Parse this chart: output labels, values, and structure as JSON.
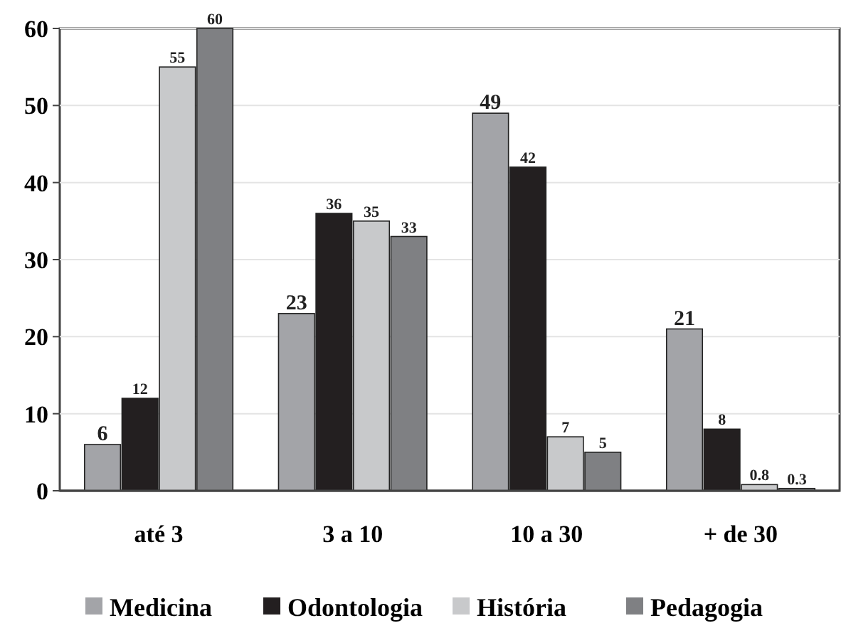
{
  "chart_data": {
    "type": "bar",
    "categories": [
      "até 3",
      "3 a 10",
      "10 a 30",
      "+ de 30"
    ],
    "series": [
      {
        "name": "Medicina",
        "color": "#a3a4a8",
        "values": [
          6,
          23,
          49,
          21
        ]
      },
      {
        "name": "Odontologia",
        "color": "#231f20",
        "values": [
          12,
          36,
          42,
          8
        ]
      },
      {
        "name": "História",
        "color": "#c8c9cb",
        "values": [
          55,
          35,
          7,
          0.8
        ]
      },
      {
        "name": "Pedagogia",
        "color": "#7f8083",
        "values": [
          60,
          33,
          5,
          0.3
        ]
      }
    ],
    "ylim": [
      0,
      60
    ],
    "yticks": [
      0,
      10,
      20,
      30,
      40,
      50,
      60
    ],
    "grid": "y",
    "legend": "bottom",
    "data_labels": true
  }
}
